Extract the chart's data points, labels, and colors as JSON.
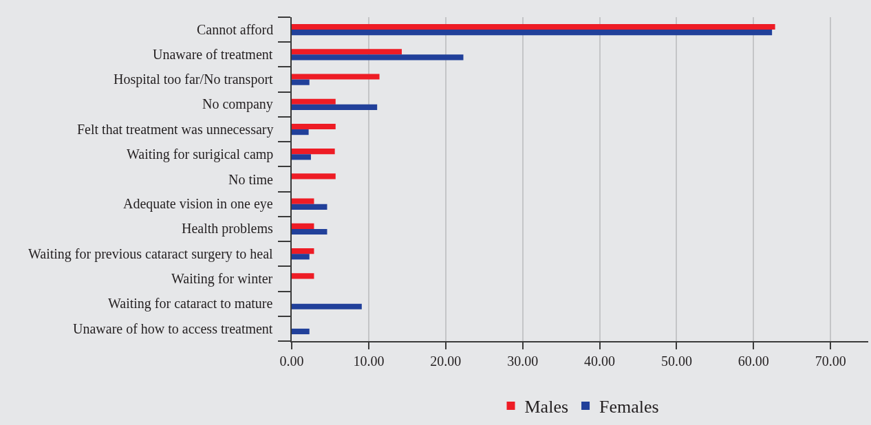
{
  "chart_data": {
    "type": "bar",
    "orientation": "horizontal",
    "categories": [
      "Cannot afford",
      "Unaware of treatment",
      "Hospital too far/No transport",
      "No company",
      "Felt that treatment was unnecessary",
      "Waiting for surigical camp",
      "No time",
      "Adequate vision in one eye",
      "Health problems",
      "Waiting for previous cataract surgery to heal",
      "Waiting for winter",
      "Waiting for cataract to mature",
      "Unaware of how to access treatment"
    ],
    "series": [
      {
        "name": "Males",
        "color": "#ee1c25",
        "values": [
          62.8,
          14.3,
          11.4,
          5.7,
          5.7,
          5.6,
          5.7,
          2.9,
          2.9,
          2.9,
          2.9,
          null,
          null
        ]
      },
      {
        "name": "Females",
        "color": "#21409a",
        "values": [
          62.4,
          22.3,
          2.3,
          11.1,
          2.2,
          2.5,
          null,
          4.6,
          4.6,
          2.3,
          null,
          9.1,
          2.3
        ]
      }
    ],
    "xlim": [
      0,
      74.9
    ],
    "xticks": [
      {
        "value": 0,
        "label": "0.00"
      },
      {
        "value": 10,
        "label": "10.00"
      },
      {
        "value": 20,
        "label": "20.00"
      },
      {
        "value": 30,
        "label": "30.00"
      },
      {
        "value": 40,
        "label": "40.00"
      },
      {
        "value": 50,
        "label": "50.00"
      },
      {
        "value": 60,
        "label": "60.00"
      },
      {
        "value": 70,
        "label": "70.00"
      }
    ],
    "grid": "x",
    "legend": "bottom"
  }
}
